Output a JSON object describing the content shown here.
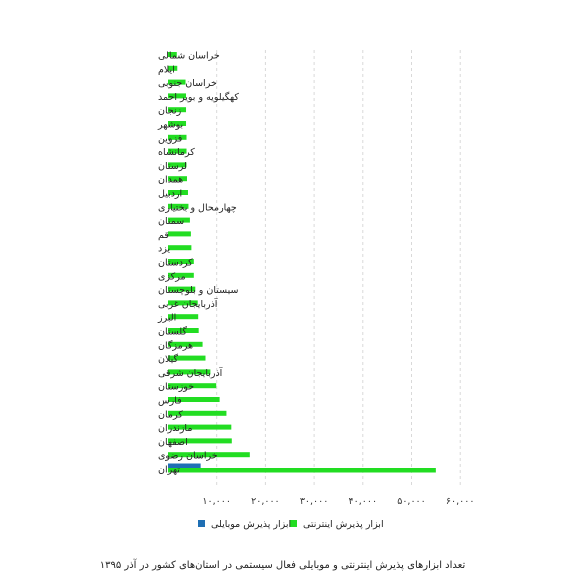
{
  "chart_data": {
    "type": "bar",
    "orientation": "horizontal",
    "categories": [
      "خراسان شمالی",
      "ایلام",
      "خراسان جنوبی",
      "کهگیلویه و بویر احمد",
      "زنجان",
      "بوشهر",
      "قزوین",
      "کرمانشاه",
      "لرستان",
      "همدان",
      "اردبیل",
      "چهارمحال و بختیاری",
      "سمنان",
      "قم",
      "یزد",
      "کردستان",
      "مرکزی",
      "سیستان و بلوچستان",
      "آذربایجان غربی",
      "البرز",
      "گلستان",
      "هرمزگان",
      "گیلان",
      "آذربایجان شرقی",
      "خوزستان",
      "فارس",
      "کرمان",
      "مازندران",
      "اصفهان",
      "خراسان رضوی",
      "تهران"
    ],
    "series": [
      {
        "name": "ابزار پذیرش اینترنتی",
        "color": "#22dd22",
        "values": [
          1800,
          1900,
          3600,
          3700,
          3700,
          3700,
          3800,
          3800,
          3800,
          3900,
          4100,
          4200,
          4500,
          4700,
          4800,
          5300,
          5300,
          5600,
          6100,
          6200,
          6300,
          7100,
          7700,
          8700,
          9900,
          10600,
          12000,
          13000,
          13100,
          16800,
          55000
        ]
      },
      {
        "name": "ابزار پذیرش موبایلی",
        "color": "#1f6fb4",
        "values": [
          0,
          0,
          0,
          0,
          0,
          0,
          0,
          0,
          0,
          0,
          0,
          0,
          0,
          0,
          0,
          0,
          0,
          0,
          0,
          0,
          0,
          0,
          0,
          0,
          0,
          0,
          0,
          0,
          0,
          0,
          6700
        ]
      }
    ],
    "xticks": [
      "۱۰,۰۰۰",
      "۲۰,۰۰۰",
      "۳۰,۰۰۰",
      "۴۰,۰۰۰",
      "۵۰,۰۰۰",
      "۶۰,۰۰۰"
    ],
    "xtick_values": [
      10000,
      20000,
      30000,
      40000,
      50000,
      60000
    ],
    "xlim": [
      0,
      60000
    ],
    "grid": true,
    "legend_position": "bottom",
    "caption": "تعداد ابزارهای پذیرش اینترنتی و موبایلی فعال سیستمی در استان‌های کشور در آذر ۱۳۹۵"
  }
}
